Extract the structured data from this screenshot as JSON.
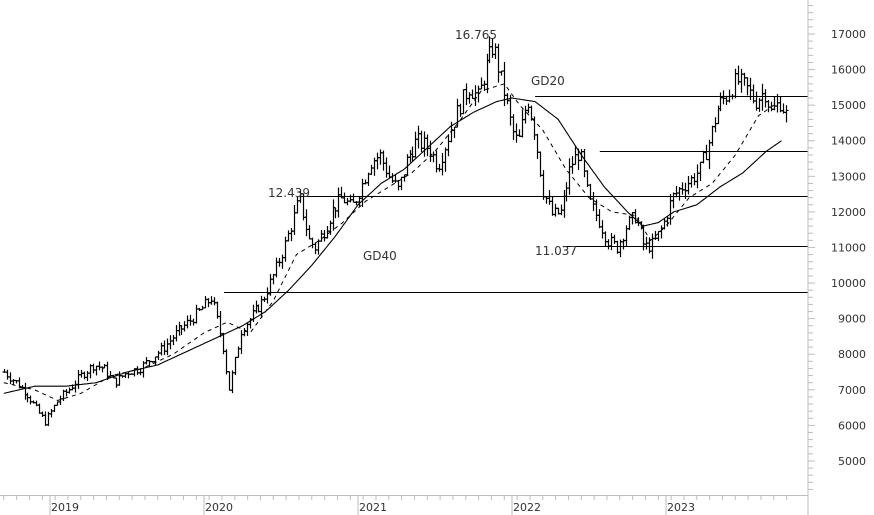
{
  "chart_data": {
    "type": "line",
    "subtype": "ohlc-bar-weekly",
    "title": "",
    "xlabel": "",
    "ylabel": "",
    "ylim": [
      4200,
      17900
    ],
    "grid": false,
    "legend": "none",
    "y_ticks": [
      5000,
      6000,
      7000,
      8000,
      9000,
      10000,
      11000,
      12000,
      13000,
      14000,
      15000,
      16000,
      17000
    ],
    "y_tick_labels": [
      "5000",
      "6000",
      "7000",
      "8000",
      "9000",
      "10000",
      "11000",
      "12000",
      "13000",
      "14000",
      "15000",
      "16000",
      "17000"
    ],
    "x_tick_labels": [
      "2019",
      "2020",
      "2021",
      "2022",
      "2023"
    ],
    "x_tick_positions_year": [
      2019.0,
      2020.0,
      2021.0,
      2022.0,
      2023.0
    ],
    "x_range_year": [
      2018.7,
      2023.8
    ],
    "price_path": {
      "x": [
        2018.7,
        2018.78,
        2018.85,
        2018.92,
        2018.97,
        2019.05,
        2019.12,
        2019.2,
        2019.28,
        2019.35,
        2019.42,
        2019.5,
        2019.58,
        2019.66,
        2019.74,
        2019.82,
        2019.9,
        2019.97,
        2020.05,
        2020.12,
        2020.16,
        2020.2,
        2020.24,
        2020.3,
        2020.38,
        2020.45,
        2020.52,
        2020.58,
        2020.62,
        2020.68,
        2020.72,
        2020.78,
        2020.84,
        2020.9,
        2020.96,
        2021.02,
        2021.08,
        2021.14,
        2021.2,
        2021.26,
        2021.32,
        2021.38,
        2021.46,
        2021.52,
        2021.6,
        2021.66,
        2021.72,
        2021.78,
        2021.84,
        2021.88,
        2021.92,
        2021.96,
        2022.0,
        2022.04,
        2022.1,
        2022.14,
        2022.2,
        2022.26,
        2022.32,
        2022.38,
        2022.44,
        2022.5,
        2022.56,
        2022.62,
        2022.68,
        2022.74,
        2022.8,
        2022.86,
        2022.92,
        2022.98,
        2023.04,
        2023.1,
        2023.16,
        2023.22,
        2023.28,
        2023.34,
        2023.4,
        2023.46,
        2023.52,
        2023.58,
        2023.64,
        2023.68,
        2023.74,
        2023.78
      ],
      "close": [
        7500,
        7200,
        6900,
        6400,
        6100,
        6700,
        7000,
        7400,
        7700,
        7600,
        7200,
        7500,
        7600,
        7900,
        8200,
        8600,
        8900,
        9200,
        9600,
        8300,
        7000,
        7800,
        8700,
        9000,
        9500,
        10200,
        11000,
        11800,
        12400,
        11200,
        11000,
        11500,
        12100,
        12400,
        12100,
        12700,
        13400,
        13600,
        13000,
        12600,
        13500,
        14000,
        13800,
        13300,
        14300,
        15000,
        15500,
        15200,
        16200,
        16700,
        15900,
        15200,
        14300,
        13900,
        15200,
        14400,
        12600,
        11900,
        12000,
        13300,
        13700,
        12300,
        11800,
        11200,
        11000,
        11600,
        11900,
        11000,
        11100,
        11600,
        12400,
        12700,
        12900,
        13200,
        14000,
        15000,
        15300,
        15700,
        15500,
        15100,
        15400,
        14800,
        15100,
        14700
      ]
    },
    "series": [
      {
        "name": "GD20",
        "style": "dashed",
        "x": [
          2018.7,
          2018.9,
          2019.05,
          2019.2,
          2019.4,
          2019.6,
          2019.8,
          2020.0,
          2020.15,
          2020.3,
          2020.45,
          2020.6,
          2020.75,
          2020.9,
          2021.05,
          2021.2,
          2021.35,
          2021.5,
          2021.65,
          2021.8,
          2021.95,
          2022.05,
          2022.2,
          2022.35,
          2022.5,
          2022.65,
          2022.8,
          2022.9,
          2023.0,
          2023.15,
          2023.3,
          2023.45,
          2023.6,
          2023.7
        ],
        "values": [
          7200,
          7000,
          6700,
          6900,
          7400,
          7600,
          8000,
          8600,
          8900,
          8600,
          9500,
          10800,
          11200,
          11700,
          12300,
          12700,
          13100,
          13700,
          14500,
          15400,
          15600,
          15000,
          14300,
          13200,
          12400,
          12000,
          11900,
          11200,
          11600,
          12400,
          12800,
          13600,
          14700,
          15000
        ]
      },
      {
        "name": "GD40",
        "style": "solid",
        "x": [
          2018.7,
          2018.9,
          2019.1,
          2019.3,
          2019.5,
          2019.7,
          2019.9,
          2020.1,
          2020.25,
          2020.4,
          2020.55,
          2020.7,
          2020.85,
          2021.0,
          2021.15,
          2021.3,
          2021.45,
          2021.6,
          2021.75,
          2021.9,
          2022.0,
          2022.15,
          2022.3,
          2022.45,
          2022.6,
          2022.75,
          2022.85,
          2022.95,
          2023.05,
          2023.2,
          2023.35,
          2023.5,
          2023.65,
          2023.75
        ],
        "values": [
          6900,
          7100,
          7100,
          7200,
          7500,
          7700,
          8100,
          8500,
          8800,
          9200,
          9800,
          10500,
          11300,
          12200,
          12800,
          13200,
          13800,
          14400,
          14800,
          15100,
          15200,
          15100,
          14600,
          13600,
          12700,
          12000,
          11600,
          11700,
          12000,
          12200,
          12700,
          13100,
          13700,
          14000
        ]
      }
    ],
    "horizontal_levels": [
      {
        "value": 15250,
        "x_start": 2022.15
      },
      {
        "value": 13700,
        "x_start": 2022.57
      },
      {
        "value": 12439,
        "x_start": 2020.62,
        "label": "12.439"
      },
      {
        "value": 11037,
        "x_start": 2022.33,
        "label": "11.037"
      },
      {
        "value": 9750,
        "x_start": 2020.13
      }
    ],
    "annotations": [
      {
        "text": "16.765",
        "x": 2021.84,
        "value": 16765,
        "kind": "peak-label"
      },
      {
        "text": "12.439",
        "x": 2020.55,
        "value": 12439,
        "kind": "level-label"
      },
      {
        "text": "11.037",
        "x": 2022.25,
        "value": 11037,
        "kind": "level-label"
      },
      {
        "text": "GD20",
        "x": 2022.05,
        "value": 15700,
        "kind": "series-label"
      },
      {
        "text": "GD40",
        "x": 2021.0,
        "value": 10800,
        "kind": "series-label"
      }
    ]
  },
  "labels": {
    "peak": "16.765",
    "level_12439": "12.439",
    "level_11037": "11.037",
    "gd20": "GD20",
    "gd40": "GD40"
  },
  "colors": {
    "line": "#000000",
    "axis": "#bdbdbd",
    "text": "#333333",
    "background": "#ffffff"
  }
}
